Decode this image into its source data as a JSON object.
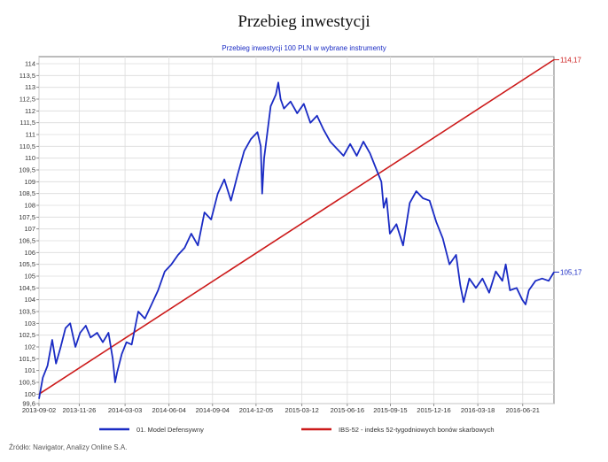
{
  "page": {
    "title": "Przebieg inwestycji",
    "source": "Źródło: Navigator, Analizy Online S.A."
  },
  "chart_data": {
    "type": "line",
    "title": "Przebieg inwestycji 100 PLN w wybrane instrumenty",
    "xlabel": "",
    "ylabel": "",
    "ylim": [
      99.6,
      114.3
    ],
    "xlim": [
      "2013-09-02",
      "2016-08-26"
    ],
    "grid": true,
    "legend_position": "bottom",
    "y_ticks": [
      99.6,
      100,
      100.5,
      101,
      101.5,
      102,
      102.5,
      103,
      103.5,
      104,
      104.5,
      105,
      105.5,
      106,
      106.5,
      107,
      107.5,
      108,
      108.5,
      109,
      109.5,
      110,
      110.5,
      111,
      111.5,
      112,
      112.5,
      113,
      113.5,
      114
    ],
    "y_tick_labels": [
      "99,6",
      "100",
      "100,5",
      "101",
      "101,5",
      "102",
      "102,5",
      "103",
      "103,5",
      "104",
      "104,5",
      "105",
      "105,5",
      "106",
      "106,5",
      "107",
      "107,5",
      "108",
      "108,5",
      "109",
      "109,5",
      "110",
      "110,5",
      "111",
      "111,5",
      "112",
      "112,5",
      "113",
      "113,5",
      "114"
    ],
    "x_ticks": [
      "2013-09-02",
      "2013-11-26",
      "2014-03-03",
      "2014-06-04",
      "2014-09-04",
      "2014-12-05",
      "2015-03-12",
      "2015-06-16",
      "2015-09-15",
      "2015-12-16",
      "2016-03-18",
      "2016-06-21"
    ],
    "series": [
      {
        "name": "01. Model Defensywny",
        "color": "#1a2bc4",
        "end_label": "105,17",
        "points": [
          [
            "2013-09-02",
            99.8
          ],
          [
            "2013-09-10",
            100.7
          ],
          [
            "2013-09-20",
            101.2
          ],
          [
            "2013-09-30",
            102.3
          ],
          [
            "2013-10-08",
            101.3
          ],
          [
            "2013-10-18",
            102.0
          ],
          [
            "2013-10-28",
            102.8
          ],
          [
            "2013-11-07",
            103.0
          ],
          [
            "2013-11-18",
            102.0
          ],
          [
            "2013-11-28",
            102.6
          ],
          [
            "2013-12-10",
            102.9
          ],
          [
            "2013-12-20",
            102.4
          ],
          [
            "2014-01-03",
            102.6
          ],
          [
            "2014-01-15",
            102.2
          ],
          [
            "2014-01-27",
            102.6
          ],
          [
            "2014-02-05",
            101.5
          ],
          [
            "2014-02-10",
            100.5
          ],
          [
            "2014-02-14",
            100.9
          ],
          [
            "2014-02-24",
            101.7
          ],
          [
            "2014-03-06",
            102.2
          ],
          [
            "2014-03-17",
            102.1
          ],
          [
            "2014-03-31",
            103.5
          ],
          [
            "2014-04-14",
            103.2
          ],
          [
            "2014-04-28",
            103.8
          ],
          [
            "2014-05-12",
            104.4
          ],
          [
            "2014-05-26",
            105.2
          ],
          [
            "2014-06-09",
            105.5
          ],
          [
            "2014-06-23",
            105.9
          ],
          [
            "2014-07-07",
            106.2
          ],
          [
            "2014-07-21",
            106.8
          ],
          [
            "2014-08-04",
            106.3
          ],
          [
            "2014-08-18",
            107.7
          ],
          [
            "2014-09-01",
            107.4
          ],
          [
            "2014-09-15",
            108.5
          ],
          [
            "2014-09-29",
            109.1
          ],
          [
            "2014-10-13",
            108.2
          ],
          [
            "2014-10-27",
            109.3
          ],
          [
            "2014-11-10",
            110.3
          ],
          [
            "2014-11-24",
            110.8
          ],
          [
            "2014-12-08",
            111.1
          ],
          [
            "2014-12-15",
            110.5
          ],
          [
            "2014-12-18",
            108.5
          ],
          [
            "2014-12-22",
            110.0
          ],
          [
            "2015-01-05",
            112.2
          ],
          [
            "2015-01-16",
            112.7
          ],
          [
            "2015-01-21",
            113.2
          ],
          [
            "2015-01-26",
            112.5
          ],
          [
            "2015-02-02",
            112.1
          ],
          [
            "2015-02-16",
            112.4
          ],
          [
            "2015-03-02",
            111.9
          ],
          [
            "2015-03-16",
            112.3
          ],
          [
            "2015-03-30",
            111.5
          ],
          [
            "2015-04-13",
            111.8
          ],
          [
            "2015-04-27",
            111.2
          ],
          [
            "2015-05-11",
            110.7
          ],
          [
            "2015-05-25",
            110.4
          ],
          [
            "2015-06-08",
            110.1
          ],
          [
            "2015-06-22",
            110.6
          ],
          [
            "2015-07-06",
            110.1
          ],
          [
            "2015-07-20",
            110.7
          ],
          [
            "2015-08-03",
            110.2
          ],
          [
            "2015-08-17",
            109.5
          ],
          [
            "2015-08-27",
            109.0
          ],
          [
            "2015-09-01",
            107.9
          ],
          [
            "2015-09-07",
            108.3
          ],
          [
            "2015-09-14",
            106.8
          ],
          [
            "2015-09-28",
            107.2
          ],
          [
            "2015-10-12",
            106.3
          ],
          [
            "2015-10-26",
            108.1
          ],
          [
            "2015-11-09",
            108.6
          ],
          [
            "2015-11-23",
            108.3
          ],
          [
            "2015-12-07",
            108.2
          ],
          [
            "2015-12-21",
            107.3
          ],
          [
            "2016-01-04",
            106.6
          ],
          [
            "2016-01-18",
            105.5
          ],
          [
            "2016-02-01",
            105.9
          ],
          [
            "2016-02-10",
            104.6
          ],
          [
            "2016-02-17",
            103.9
          ],
          [
            "2016-02-29",
            104.9
          ],
          [
            "2016-03-14",
            104.5
          ],
          [
            "2016-03-28",
            104.9
          ],
          [
            "2016-04-11",
            104.3
          ],
          [
            "2016-04-25",
            105.2
          ],
          [
            "2016-05-09",
            104.8
          ],
          [
            "2016-05-16",
            105.5
          ],
          [
            "2016-05-25",
            104.4
          ],
          [
            "2016-06-08",
            104.5
          ],
          [
            "2016-06-20",
            104.0
          ],
          [
            "2016-06-27",
            103.8
          ],
          [
            "2016-07-04",
            104.4
          ],
          [
            "2016-07-18",
            104.8
          ],
          [
            "2016-08-01",
            104.9
          ],
          [
            "2016-08-15",
            104.8
          ],
          [
            "2016-08-26",
            105.17
          ]
        ]
      },
      {
        "name": "IBS-52 - indeks 52-tygodniowych bonów skarbowych",
        "color": "#cc1a1a",
        "end_label": "114,17",
        "points": [
          [
            "2013-09-02",
            100.0
          ],
          [
            "2016-08-26",
            114.17
          ]
        ]
      }
    ]
  }
}
